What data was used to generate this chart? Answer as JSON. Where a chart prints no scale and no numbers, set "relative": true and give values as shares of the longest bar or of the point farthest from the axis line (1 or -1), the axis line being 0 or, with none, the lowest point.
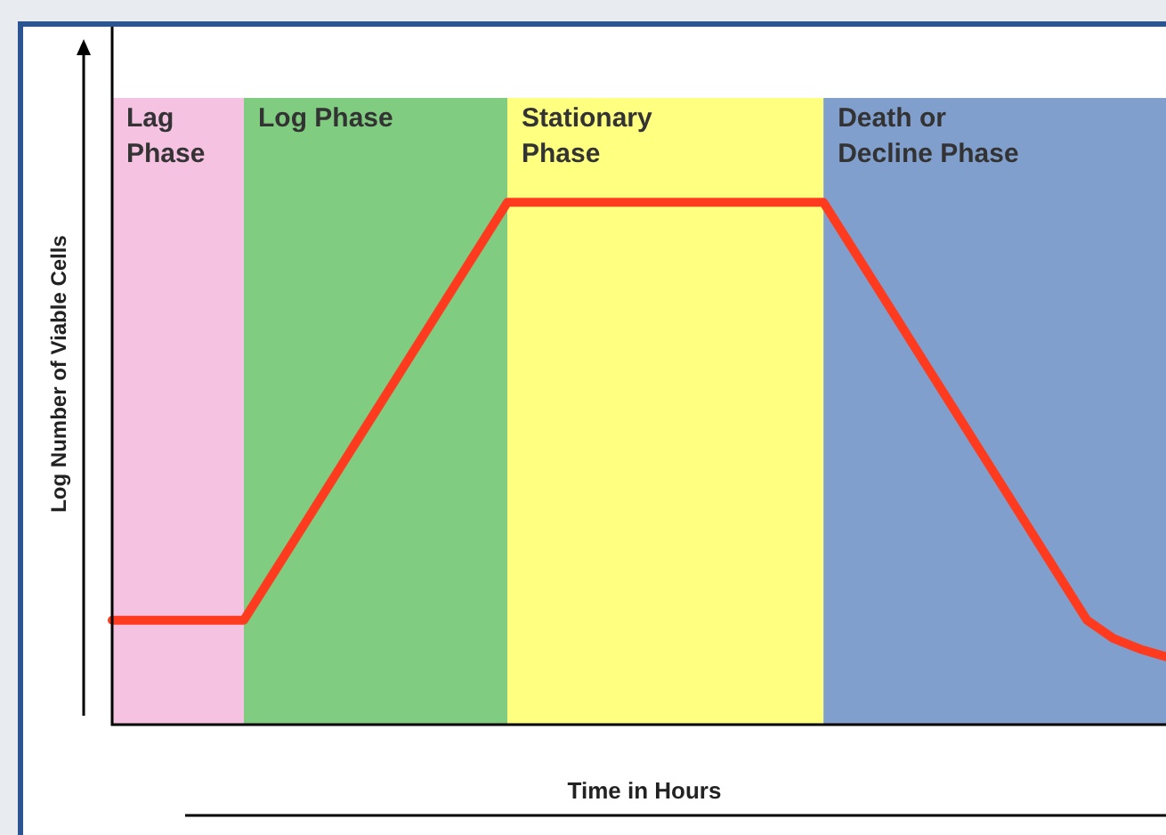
{
  "chart_data": {
    "type": "line",
    "relative": true,
    "xlabel": "Time in Hours",
    "ylabel": "Log Number of Viable Cells",
    "tick_labels": false,
    "categories": [
      null,
      null,
      null,
      null,
      null,
      null,
      null,
      null,
      null,
      null,
      null,
      null,
      null,
      null,
      null,
      null,
      null,
      null,
      null,
      null,
      null,
      null,
      null,
      null,
      null,
      null,
      null,
      null,
      null,
      null,
      null,
      null,
      null,
      null,
      null,
      null,
      null,
      null,
      null,
      null,
      null
    ],
    "series": [
      {
        "color": "#ff3b1f",
        "values": [
          0.2,
          0.2,
          0.2,
          0.2,
          0.2,
          0.2,
          0.28,
          0.36,
          0.44,
          0.52,
          0.6,
          0.68,
          0.76,
          0.84,
          0.92,
          1,
          1,
          1,
          1,
          1,
          1,
          1,
          1,
          1,
          1,
          1,
          1,
          1,
          0.92,
          0.84,
          0.76,
          0.68,
          0.6,
          0.52,
          0.44,
          0.36,
          0.28,
          0.2,
          0.165,
          0.145,
          0.13
        ]
      }
    ],
    "annotations": [
      "Lag Phase",
      "Log Phase",
      "Stationary Phase",
      "Death or Decline Phase"
    ],
    "marker": "none",
    "line_style": "solid",
    "legend": false
  }
}
